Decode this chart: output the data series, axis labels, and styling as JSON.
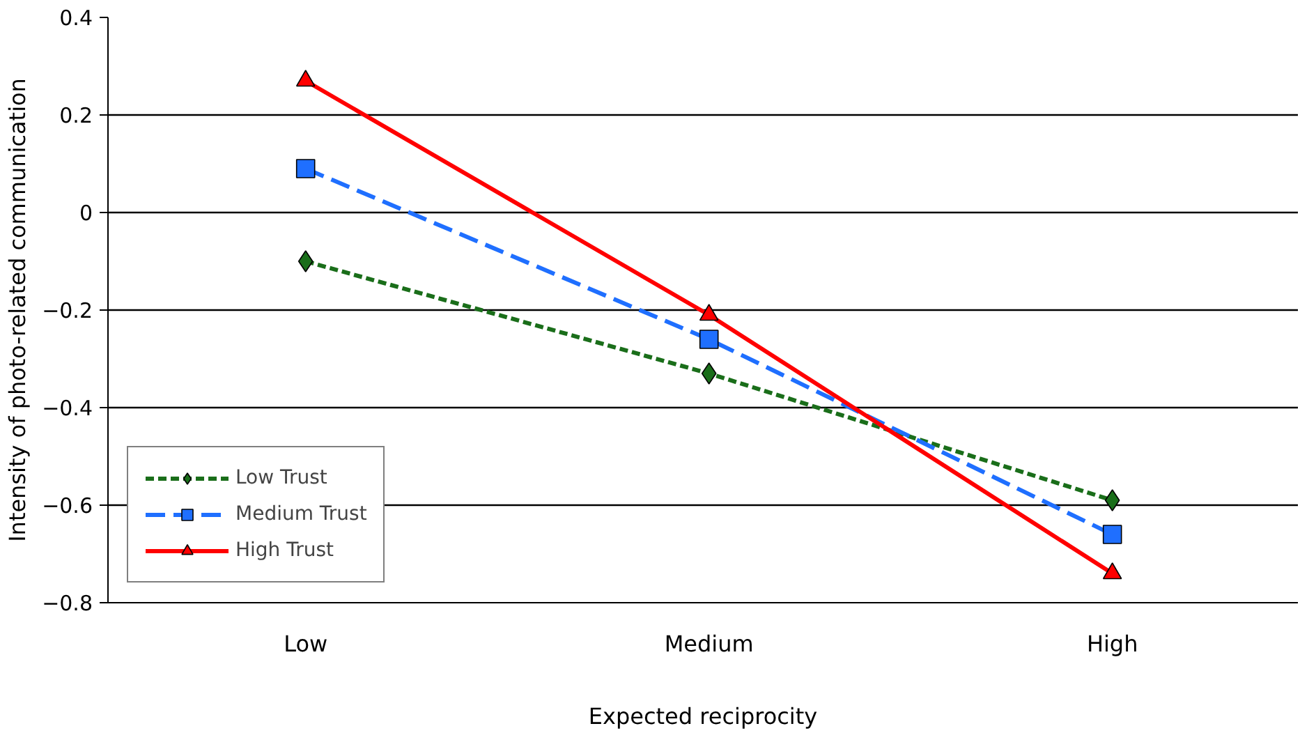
{
  "chart_data": {
    "type": "line",
    "xlabel": "Expected reciprocity",
    "ylabel": "Intensity of photo-related communication",
    "categories": [
      "Low",
      "Medium",
      "High"
    ],
    "series": [
      {
        "name": "Low Trust",
        "color": "#1a6e1a",
        "values": [
          -0.1,
          -0.33,
          -0.59
        ],
        "marker": "diamond",
        "line_style": "dotted"
      },
      {
        "name": "Medium Trust",
        "color": "#1f6fff",
        "values": [
          0.09,
          -0.26,
          -0.66
        ],
        "marker": "square",
        "line_style": "dashed"
      },
      {
        "name": "High Trust",
        "color": "#ff0000",
        "values": [
          0.27,
          -0.21,
          -0.74
        ],
        "marker": "triangle",
        "line_style": "solid"
      }
    ],
    "ylim": [
      -0.8,
      0.4
    ],
    "yticks": [
      {
        "value": -0.8,
        "label": "−0.8"
      },
      {
        "value": -0.6,
        "label": "−0.6"
      },
      {
        "value": -0.4,
        "label": "−0.4"
      },
      {
        "value": -0.2,
        "label": "−0.2"
      },
      0,
      0.2,
      0.4
    ],
    "grid": "y",
    "legend": "bottom left"
  }
}
